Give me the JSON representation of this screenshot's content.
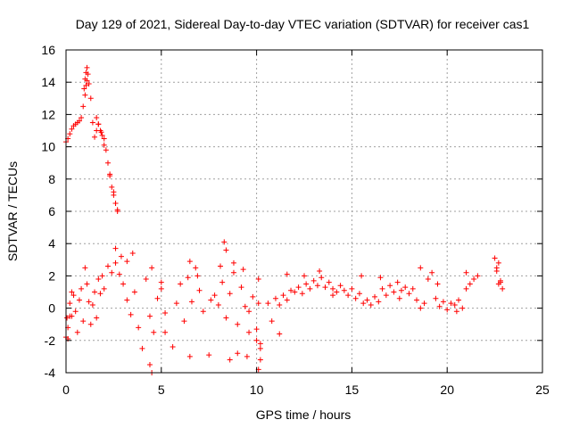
{
  "chart_data": {
    "type": "scatter",
    "title": "Day 129 of 2021, Sidereal Day-to-day VTEC variation (SDTVAR) for receiver cas1",
    "xlabel": "GPS time / hours",
    "ylabel": "SDTVAR / TECUs",
    "xlim": [
      0,
      25
    ],
    "ylim": [
      -4,
      16
    ],
    "xticks": [
      0,
      5,
      10,
      15,
      20,
      25
    ],
    "yticks": [
      -4,
      -2,
      0,
      2,
      4,
      6,
      8,
      10,
      12,
      14,
      16
    ],
    "grid": true,
    "marker": "+",
    "color": "#ff0000",
    "series": [
      {
        "name": "SDTVAR",
        "x": [
          0.0,
          0.1,
          0.2,
          0.3,
          0.4,
          0.5,
          0.6,
          0.7,
          0.8,
          0.9,
          1.0,
          1.05,
          1.1,
          1.15,
          1.2,
          1.3,
          1.4,
          1.5,
          1.6,
          1.7,
          1.8,
          1.9,
          2.0,
          2.1,
          2.2,
          2.3,
          2.4,
          2.5,
          2.6,
          2.7,
          0.0,
          0.1,
          0.2,
          0.3,
          0.4,
          0.5,
          0.6,
          0.7,
          0.8,
          0.9,
          1.0,
          1.1,
          1.2,
          1.3,
          1.4,
          1.5,
          1.6,
          1.7,
          1.8,
          1.9,
          2.0,
          2.2,
          2.4,
          2.6,
          2.8,
          3.0,
          3.2,
          3.4,
          3.6,
          3.8,
          4.0,
          4.2,
          4.4,
          4.6,
          4.8,
          5.0,
          5.2,
          5.8,
          6.0,
          6.2,
          6.4,
          6.6,
          6.8,
          7.0,
          7.2,
          7.6,
          7.8,
          8.0,
          8.2,
          8.4,
          8.6,
          8.8,
          9.0,
          9.2,
          9.4,
          9.6,
          9.8,
          10.0,
          10.1,
          10.2,
          10.6,
          10.8,
          11.0,
          11.2,
          11.4,
          11.6,
          11.8,
          12.0,
          12.2,
          12.4,
          12.6,
          12.8,
          13.0,
          13.2,
          13.4,
          13.6,
          13.8,
          14.0,
          14.2,
          14.4,
          14.6,
          14.8,
          15.0,
          15.2,
          15.4,
          15.6,
          15.8,
          16.0,
          16.2,
          16.4,
          16.6,
          16.8,
          17.0,
          17.2,
          17.4,
          17.6,
          17.8,
          18.0,
          18.2,
          18.4,
          18.6,
          18.8,
          19.0,
          19.2,
          19.4,
          19.6,
          19.8,
          20.0,
          20.2,
          20.4,
          20.6,
          20.8,
          21.0,
          21.2,
          21.4,
          21.6,
          22.6,
          22.7,
          22.8,
          22.9,
          1.1,
          1.05,
          1.0,
          0.95,
          1.6,
          1.7,
          1.85,
          2.0,
          2.3,
          2.5,
          2.6,
          2.7,
          3.5,
          4.4,
          4.5,
          4.5,
          5.0,
          5.2,
          6.5,
          6.5,
          8.3,
          8.4,
          8.6,
          8.8,
          9.3,
          9.5,
          10.1,
          10.1,
          10.2,
          10.2,
          22.5,
          22.6,
          22.7,
          22.8,
          11.6,
          13.3,
          15.5,
          18.6,
          0.2,
          0.3,
          2.6,
          2.9,
          3.2,
          6.9,
          8.1,
          9.0,
          12.5,
          16.5,
          19.5,
          21.0,
          0.05,
          0.1,
          5.6,
          7.5,
          9.6,
          10.0,
          11.2,
          14.0,
          17.5,
          20.5
        ],
        "y": [
          10.3,
          10.5,
          10.8,
          11.1,
          11.3,
          11.4,
          11.5,
          11.6,
          11.8,
          12.5,
          13.2,
          13.8,
          14.1,
          14.5,
          13.9,
          13.0,
          11.5,
          10.6,
          11.0,
          11.4,
          11.0,
          10.7,
          10.5,
          9.8,
          9.0,
          8.3,
          7.5,
          7.0,
          6.5,
          6.0,
          -1.8,
          -1.2,
          0.3,
          -0.5,
          0.8,
          -0.2,
          -1.5,
          0.5,
          1.2,
          -0.8,
          2.5,
          1.5,
          0.4,
          -1.0,
          0.2,
          1.0,
          -0.6,
          1.8,
          0.9,
          2.0,
          1.2,
          2.6,
          2.2,
          2.8,
          2.1,
          1.5,
          0.5,
          -0.4,
          1.0,
          -1.2,
          -2.5,
          1.8,
          -0.5,
          -1.5,
          0.6,
          1.2,
          -0.3,
          0.3,
          1.5,
          -0.8,
          1.9,
          0.4,
          2.5,
          1.1,
          -0.2,
          0.5,
          0.8,
          0.2,
          1.6,
          -0.6,
          0.9,
          2.2,
          -1.0,
          1.3,
          0.1,
          -0.2,
          0.7,
          -1.3,
          0.3,
          -2.2,
          0.3,
          -0.8,
          0.6,
          0.2,
          0.8,
          0.5,
          1.1,
          1.0,
          1.3,
          0.9,
          1.5,
          1.2,
          1.7,
          1.4,
          1.9,
          1.3,
          1.6,
          1.2,
          1.0,
          1.4,
          1.1,
          0.8,
          1.2,
          0.6,
          0.9,
          0.3,
          0.5,
          0.2,
          0.7,
          0.4,
          1.2,
          0.8,
          1.4,
          1.0,
          1.6,
          1.1,
          1.3,
          0.9,
          1.2,
          0.5,
          0.0,
          0.3,
          1.8,
          2.2,
          0.6,
          0.1,
          0.4,
          -0.1,
          0.3,
          0.2,
          0.5,
          0.0,
          1.2,
          1.5,
          1.8,
          2.0,
          2.3,
          2.8,
          1.6,
          1.2,
          14.9,
          14.6,
          14.2,
          13.6,
          11.8,
          11.4,
          10.9,
          10.1,
          8.2,
          7.2,
          6.5,
          6.1,
          3.4,
          -3.5,
          -4.0,
          2.5,
          1.6,
          -1.5,
          2.9,
          -3.0,
          4.1,
          3.6,
          -3.2,
          2.8,
          2.4,
          -3.0,
          -3.8,
          1.8,
          -3.2,
          -2.5,
          3.1,
          2.5,
          1.5,
          1.7,
          2.1,
          2.3,
          2.0,
          2.5,
          -0.5,
          1.0,
          3.7,
          3.2,
          2.9,
          2.0,
          2.6,
          -2.8,
          2.0,
          1.9,
          1.5,
          2.2,
          -0.6,
          -1.9,
          -2.4,
          -2.9,
          -1.5,
          -2.0,
          -1.6,
          0.8,
          0.6,
          -0.2
        ]
      }
    ]
  }
}
